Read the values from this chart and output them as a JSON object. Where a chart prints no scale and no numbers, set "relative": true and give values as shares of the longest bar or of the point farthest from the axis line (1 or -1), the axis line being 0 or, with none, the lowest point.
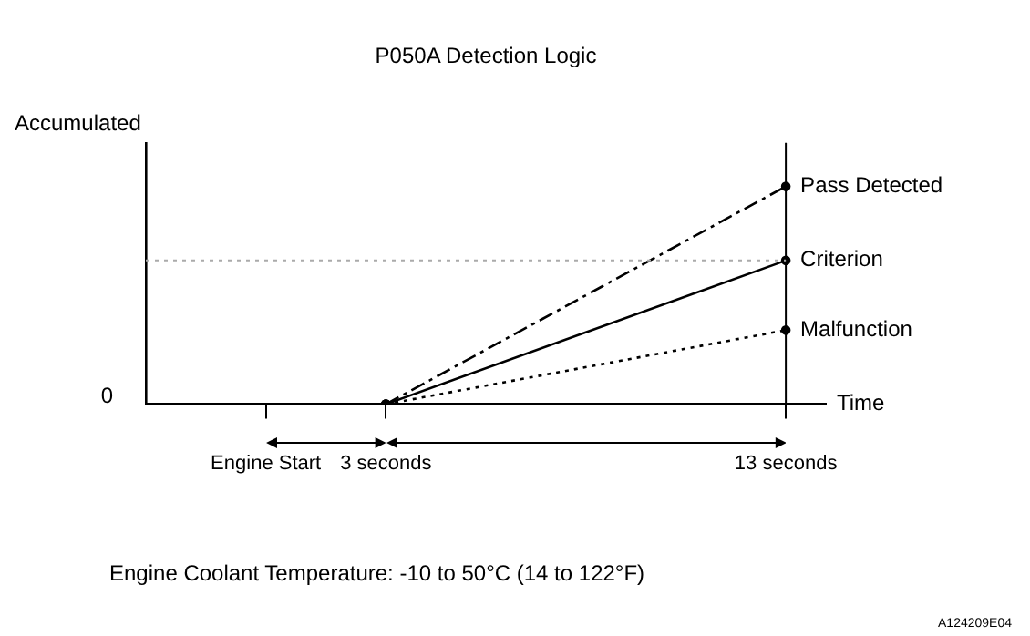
{
  "chart_data": {
    "type": "line",
    "title": "P050A Detection Logic",
    "ylabel": "Accumulated",
    "xlabel": "Time",
    "relative": true,
    "marker": "circle",
    "x": [
      3,
      13
    ],
    "xlim": [
      -3,
      14
    ],
    "xticks": [
      {
        "value": 0,
        "label": "Engine Start"
      },
      {
        "value": 3,
        "label": "3 seconds"
      },
      {
        "value": 13,
        "label": "13 seconds"
      }
    ],
    "series": [
      {
        "name": "Pass Detected",
        "color": "#000000",
        "values": [
          0,
          1
        ],
        "line_style": "dashed"
      },
      {
        "name": "Criterion",
        "color": "#000000",
        "values": [
          0,
          0.66
        ],
        "line_style": "solid"
      },
      {
        "name": "Malfunction",
        "color": "#000000",
        "values": [
          0,
          0.34
        ],
        "line_style": "dotted"
      }
    ],
    "ref_lines": [
      {
        "axis": "x",
        "value": 13,
        "color": "#000000",
        "line_style": "solid"
      },
      {
        "axis": "y",
        "value": 0.66,
        "color": "#aaaaaa",
        "line_style": "dotted"
      }
    ],
    "annotations": [
      "0",
      "Engine Coolant Temperature: -10 to 50°C (14 to 122°F)",
      "A124209E04"
    ],
    "grid": false,
    "legend": false
  }
}
